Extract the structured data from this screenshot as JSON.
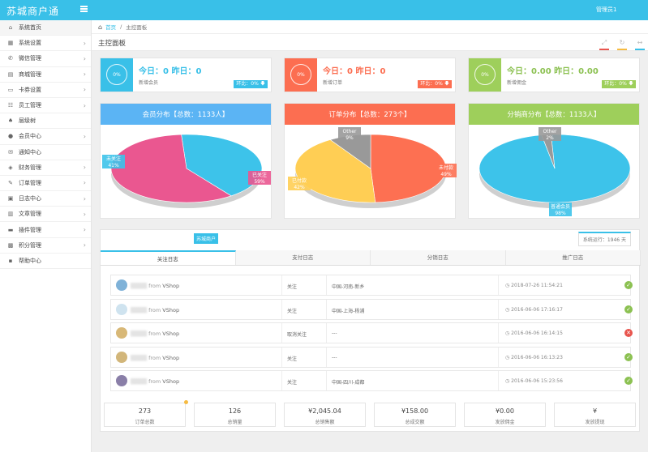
{
  "app": {
    "title": "苏城商户通",
    "user": "管理员1"
  },
  "sidebar": {
    "items": [
      {
        "label": "系统首页",
        "icon": "home-icon",
        "arrow": false
      },
      {
        "label": "系统设置",
        "icon": "grid-icon",
        "arrow": true
      },
      {
        "label": "微信管理",
        "icon": "wechat-icon",
        "arrow": true
      },
      {
        "label": "商城管理",
        "icon": "shop-icon",
        "arrow": true
      },
      {
        "label": "卡券设置",
        "icon": "card-icon",
        "arrow": true
      },
      {
        "label": "员工管理",
        "icon": "staff-icon",
        "arrow": true
      },
      {
        "label": "层级树",
        "icon": "tree-icon",
        "arrow": false
      },
      {
        "label": "会员中心",
        "icon": "user-icon",
        "arrow": true
      },
      {
        "label": "通知中心",
        "icon": "mail-icon",
        "arrow": false
      },
      {
        "label": "财务管理",
        "icon": "finance-icon",
        "arrow": true
      },
      {
        "label": "订单管理",
        "icon": "order-icon",
        "arrow": true
      },
      {
        "label": "日志中心",
        "icon": "log-icon",
        "arrow": true
      },
      {
        "label": "文章管理",
        "icon": "article-icon",
        "arrow": true
      },
      {
        "label": "插件管理",
        "icon": "plugin-icon",
        "arrow": true
      },
      {
        "label": "积分管理",
        "icon": "points-icon",
        "arrow": true
      },
      {
        "label": "帮助中心",
        "icon": "help-icon",
        "arrow": false
      }
    ]
  },
  "breadcrumb": {
    "home": "首页",
    "sep": "/",
    "current": "主控面板"
  },
  "page_title": "主控面板",
  "stats": [
    {
      "pct": "0%",
      "main": "今日：0  昨日：0",
      "sub": "新增会员",
      "badge": "环比：0%",
      "color": "#39c0e8"
    },
    {
      "pct": "0%",
      "main": "今日：0  昨日：0",
      "sub": "新增订单",
      "badge": "环比：0%",
      "color": "#fc6e51"
    },
    {
      "pct": "0%",
      "main": "今日：0.00  昨日：0.00",
      "sub": "新增佣金",
      "badge": "环比：0%",
      "color": "#9ecf5b"
    }
  ],
  "panels": [
    {
      "title": "会员分布【总数：1133人】",
      "color": "#5bb4f4",
      "slices": [
        {
          "name": "未关注",
          "pct": "41%",
          "value": 41,
          "color": "#3dc3ea"
        },
        {
          "name": "已关注",
          "pct": "59%",
          "value": 59,
          "color": "#ea5790"
        }
      ]
    },
    {
      "title": "订单分布【总数：273个】",
      "color": "#fc6e51",
      "slices": [
        {
          "name": "未付款",
          "pct": "49%",
          "value": 49,
          "color": "#fd7052"
        },
        {
          "name": "已付款",
          "pct": "42%",
          "value": 42,
          "color": "#ffce54"
        },
        {
          "name": "Other",
          "pct": "9%",
          "value": 9,
          "color": "#999999"
        }
      ]
    },
    {
      "title": "分销商分布【总数：1133人】",
      "color": "#9ecf5b",
      "slices": [
        {
          "name": "普通会员",
          "pct": "98%",
          "value": 98,
          "color": "#3dc3ea"
        },
        {
          "name": "Other",
          "pct": "2%",
          "value": 2,
          "color": "#999999"
        }
      ]
    }
  ],
  "bottom": {
    "tag": "苏城商户",
    "runtime": "系统运行：1946 天",
    "tabs": [
      "关注日志",
      "支付日志",
      "分销日志",
      "推广日志"
    ],
    "logs": [
      {
        "from": "from",
        "source": "VShop",
        "action": "关注",
        "location": "中国-河南-新乡",
        "time": "2018-07-26 11:54:21",
        "status": "ok"
      },
      {
        "from": "from",
        "source": "VShop",
        "action": "关注",
        "location": "中国-上海-杨浦",
        "time": "2016-06-06 17:16:17",
        "status": "ok"
      },
      {
        "from": "from",
        "source": "VShop",
        "action": "取消关注",
        "location": "---",
        "time": "2016-06-06 16:14:15",
        "status": "err"
      },
      {
        "from": "from",
        "source": "VShop",
        "action": "关注",
        "location": "---",
        "time": "2016-06-06 16:13:23",
        "status": "ok"
      },
      {
        "from": "from",
        "source": "VShop",
        "action": "关注",
        "location": "中国-四川-成都",
        "time": "2016-06-06 15:23:56",
        "status": "ok"
      }
    ],
    "summary": [
      {
        "value": "273",
        "label": "订单总数"
      },
      {
        "value": "126",
        "label": "总销量"
      },
      {
        "value": "¥2,045.04",
        "label": "总销售额"
      },
      {
        "value": "¥158.00",
        "label": "总成交额"
      },
      {
        "value": "¥0.00",
        "label": "发放佣金"
      },
      {
        "value": "¥",
        "label": "发放提现"
      }
    ]
  }
}
